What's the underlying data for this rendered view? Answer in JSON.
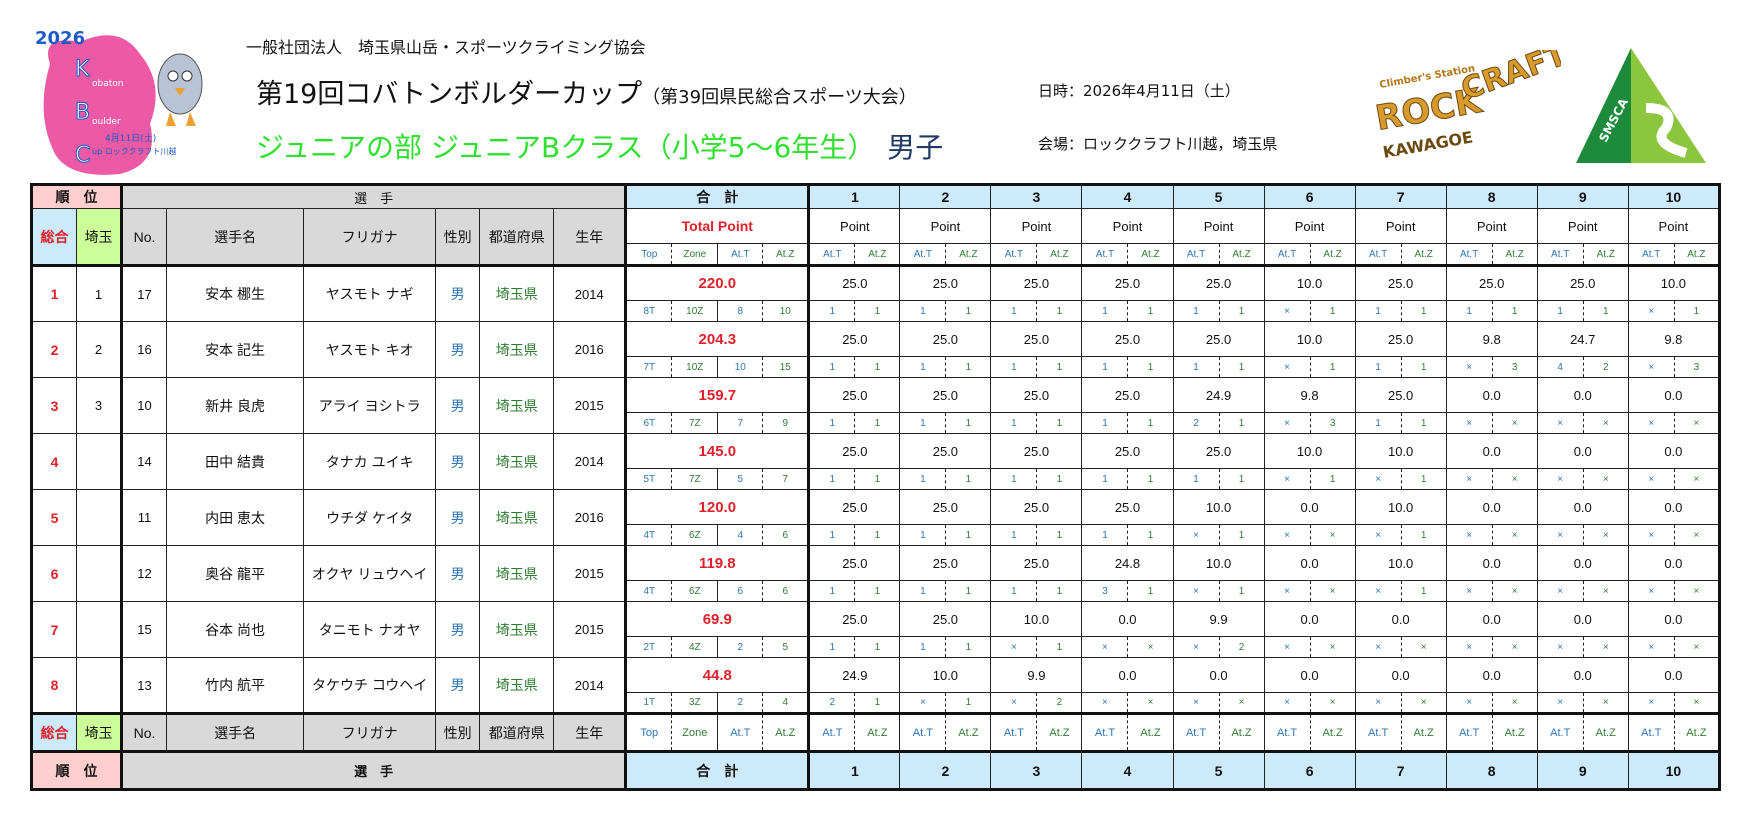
{
  "header": {
    "organization": "一般社団法人　埼玉県山岳・スポーツクライミング協会",
    "title": "第19回コバトンボルダーカップ",
    "subtitle": "（第39回県民総合スポーツ大会）",
    "category": "ジュニアの部 ジュニアBクラス（小学5～6年生）",
    "gender": "男子",
    "date": "日時：2026年4月11日（土）",
    "venue": "会場：ロッククラフト川越，埼玉県"
  },
  "logos": {
    "kbc": {
      "year": "2026",
      "letters": [
        "K",
        "B",
        "C"
      ],
      "words": [
        "obaton",
        "oulder",
        "up ロッククラフト川越"
      ],
      "date": "4月11日(土)"
    },
    "rockcraft": {
      "tagline": "Climber's Station",
      "name1": "ROCK",
      "name2": "CRAFT",
      "place": "KAWAGOE"
    },
    "smsca": {
      "name": "SMSCA"
    }
  },
  "colors": {
    "rank_header": "#ffcfcf",
    "total_header": "#cdeafb",
    "saitama_header": "#ccff99",
    "player_header": "#d9d9d9",
    "total_point": "#e0202a",
    "attempt_top": "#2e75b6",
    "attempt_zone": "#2f7d32"
  },
  "table": {
    "rank_group": "順　位",
    "player_group": "選　手",
    "total_group": "合　計",
    "problems": [
      "1",
      "2",
      "3",
      "4",
      "5",
      "6",
      "7",
      "8",
      "9",
      "10"
    ],
    "cols": {
      "overall": "総合",
      "saitama": "埼玉",
      "no": "No.",
      "name": "選手名",
      "kana": "フリガナ",
      "sex": "性別",
      "pref": "都道府県",
      "year": "生年"
    },
    "total_point": "Total Point",
    "point": "Point",
    "sub": {
      "top": "Top",
      "zone": "Zone",
      "att": "At.T",
      "atz": "At.Z"
    },
    "rows": [
      {
        "overall": "1",
        "saitama": "1",
        "no": "17",
        "name": "安本 梛生",
        "kana": "ヤスモト ナギ",
        "sex": "男",
        "pref": "埼玉県",
        "year": "2014",
        "total": "220.0",
        "top": "8T",
        "zone": "10Z",
        "att": "8",
        "atz": "10",
        "problems": [
          {
            "p": "25.0",
            "t": "1",
            "z": "1"
          },
          {
            "p": "25.0",
            "t": "1",
            "z": "1"
          },
          {
            "p": "25.0",
            "t": "1",
            "z": "1"
          },
          {
            "p": "25.0",
            "t": "1",
            "z": "1"
          },
          {
            "p": "25.0",
            "t": "1",
            "z": "1"
          },
          {
            "p": "10.0",
            "t": "×",
            "z": "1"
          },
          {
            "p": "25.0",
            "t": "1",
            "z": "1"
          },
          {
            "p": "25.0",
            "t": "1",
            "z": "1"
          },
          {
            "p": "25.0",
            "t": "1",
            "z": "1"
          },
          {
            "p": "10.0",
            "t": "×",
            "z": "1"
          }
        ]
      },
      {
        "overall": "2",
        "saitama": "2",
        "no": "16",
        "name": "安本 記生",
        "kana": "ヤスモト キオ",
        "sex": "男",
        "pref": "埼玉県",
        "year": "2016",
        "total": "204.3",
        "top": "7T",
        "zone": "10Z",
        "att": "10",
        "atz": "15",
        "problems": [
          {
            "p": "25.0",
            "t": "1",
            "z": "1"
          },
          {
            "p": "25.0",
            "t": "1",
            "z": "1"
          },
          {
            "p": "25.0",
            "t": "1",
            "z": "1"
          },
          {
            "p": "25.0",
            "t": "1",
            "z": "1"
          },
          {
            "p": "25.0",
            "t": "1",
            "z": "1"
          },
          {
            "p": "10.0",
            "t": "×",
            "z": "1"
          },
          {
            "p": "25.0",
            "t": "1",
            "z": "1"
          },
          {
            "p": "9.8",
            "t": "×",
            "z": "3"
          },
          {
            "p": "24.7",
            "t": "4",
            "z": "2"
          },
          {
            "p": "9.8",
            "t": "×",
            "z": "3"
          }
        ]
      },
      {
        "overall": "3",
        "saitama": "3",
        "no": "10",
        "name": "新井 良虎",
        "kana": "アライ ヨシトラ",
        "sex": "男",
        "pref": "埼玉県",
        "year": "2015",
        "total": "159.7",
        "top": "6T",
        "zone": "7Z",
        "att": "7",
        "atz": "9",
        "problems": [
          {
            "p": "25.0",
            "t": "1",
            "z": "1"
          },
          {
            "p": "25.0",
            "t": "1",
            "z": "1"
          },
          {
            "p": "25.0",
            "t": "1",
            "z": "1"
          },
          {
            "p": "25.0",
            "t": "1",
            "z": "1"
          },
          {
            "p": "24.9",
            "t": "2",
            "z": "1"
          },
          {
            "p": "9.8",
            "t": "×",
            "z": "3"
          },
          {
            "p": "25.0",
            "t": "1",
            "z": "1"
          },
          {
            "p": "0.0",
            "t": "×",
            "z": "×"
          },
          {
            "p": "0.0",
            "t": "×",
            "z": "×"
          },
          {
            "p": "0.0",
            "t": "×",
            "z": "×"
          }
        ]
      },
      {
        "overall": "4",
        "saitama": "",
        "no": "14",
        "name": "田中 結貴",
        "kana": "タナカ ユイキ",
        "sex": "男",
        "pref": "埼玉県",
        "year": "2014",
        "total": "145.0",
        "top": "5T",
        "zone": "7Z",
        "att": "5",
        "atz": "7",
        "problems": [
          {
            "p": "25.0",
            "t": "1",
            "z": "1"
          },
          {
            "p": "25.0",
            "t": "1",
            "z": "1"
          },
          {
            "p": "25.0",
            "t": "1",
            "z": "1"
          },
          {
            "p": "25.0",
            "t": "1",
            "z": "1"
          },
          {
            "p": "25.0",
            "t": "1",
            "z": "1"
          },
          {
            "p": "10.0",
            "t": "×",
            "z": "1"
          },
          {
            "p": "10.0",
            "t": "×",
            "z": "1"
          },
          {
            "p": "0.0",
            "t": "×",
            "z": "×"
          },
          {
            "p": "0.0",
            "t": "×",
            "z": "×"
          },
          {
            "p": "0.0",
            "t": "×",
            "z": "×"
          }
        ]
      },
      {
        "overall": "5",
        "saitama": "",
        "no": "11",
        "name": "内田 恵太",
        "kana": "ウチダ ケイタ",
        "sex": "男",
        "pref": "埼玉県",
        "year": "2016",
        "total": "120.0",
        "top": "4T",
        "zone": "6Z",
        "att": "4",
        "atz": "6",
        "problems": [
          {
            "p": "25.0",
            "t": "1",
            "z": "1"
          },
          {
            "p": "25.0",
            "t": "1",
            "z": "1"
          },
          {
            "p": "25.0",
            "t": "1",
            "z": "1"
          },
          {
            "p": "25.0",
            "t": "1",
            "z": "1"
          },
          {
            "p": "10.0",
            "t": "×",
            "z": "1"
          },
          {
            "p": "0.0",
            "t": "×",
            "z": "×"
          },
          {
            "p": "10.0",
            "t": "×",
            "z": "1"
          },
          {
            "p": "0.0",
            "t": "×",
            "z": "×"
          },
          {
            "p": "0.0",
            "t": "×",
            "z": "×"
          },
          {
            "p": "0.0",
            "t": "×",
            "z": "×"
          }
        ]
      },
      {
        "overall": "6",
        "saitama": "",
        "no": "12",
        "name": "奥谷 龍平",
        "kana": "オクヤ リュウヘイ",
        "sex": "男",
        "pref": "埼玉県",
        "year": "2015",
        "total": "119.8",
        "top": "4T",
        "zone": "6Z",
        "att": "6",
        "atz": "6",
        "problems": [
          {
            "p": "25.0",
            "t": "1",
            "z": "1"
          },
          {
            "p": "25.0",
            "t": "1",
            "z": "1"
          },
          {
            "p": "25.0",
            "t": "1",
            "z": "1"
          },
          {
            "p": "24.8",
            "t": "3",
            "z": "1"
          },
          {
            "p": "10.0",
            "t": "×",
            "z": "1"
          },
          {
            "p": "0.0",
            "t": "×",
            "z": "×"
          },
          {
            "p": "10.0",
            "t": "×",
            "z": "1"
          },
          {
            "p": "0.0",
            "t": "×",
            "z": "×"
          },
          {
            "p": "0.0",
            "t": "×",
            "z": "×"
          },
          {
            "p": "0.0",
            "t": "×",
            "z": "×"
          }
        ]
      },
      {
        "overall": "7",
        "saitama": "",
        "no": "15",
        "name": "谷本 尚也",
        "kana": "タニモト ナオヤ",
        "sex": "男",
        "pref": "埼玉県",
        "year": "2015",
        "total": "69.9",
        "top": "2T",
        "zone": "4Z",
        "att": "2",
        "atz": "5",
        "problems": [
          {
            "p": "25.0",
            "t": "1",
            "z": "1"
          },
          {
            "p": "25.0",
            "t": "1",
            "z": "1"
          },
          {
            "p": "10.0",
            "t": "×",
            "z": "1"
          },
          {
            "p": "0.0",
            "t": "×",
            "z": "×"
          },
          {
            "p": "9.9",
            "t": "×",
            "z": "2"
          },
          {
            "p": "0.0",
            "t": "×",
            "z": "×"
          },
          {
            "p": "0.0",
            "t": "×",
            "z": "×"
          },
          {
            "p": "0.0",
            "t": "×",
            "z": "×"
          },
          {
            "p": "0.0",
            "t": "×",
            "z": "×"
          },
          {
            "p": "0.0",
            "t": "×",
            "z": "×"
          }
        ]
      },
      {
        "overall": "8",
        "saitama": "",
        "no": "13",
        "name": "竹内 航平",
        "kana": "タケウチ コウヘイ",
        "sex": "男",
        "pref": "埼玉県",
        "year": "2014",
        "total": "44.8",
        "top": "1T",
        "zone": "3Z",
        "att": "2",
        "atz": "4",
        "problems": [
          {
            "p": "24.9",
            "t": "2",
            "z": "1"
          },
          {
            "p": "10.0",
            "t": "×",
            "z": "1"
          },
          {
            "p": "9.9",
            "t": "×",
            "z": "2"
          },
          {
            "p": "0.0",
            "t": "×",
            "z": "×"
          },
          {
            "p": "0.0",
            "t": "×",
            "z": "×"
          },
          {
            "p": "0.0",
            "t": "×",
            "z": "×"
          },
          {
            "p": "0.0",
            "t": "×",
            "z": "×"
          },
          {
            "p": "0.0",
            "t": "×",
            "z": "×"
          },
          {
            "p": "0.0",
            "t": "×",
            "z": "×"
          },
          {
            "p": "0.0",
            "t": "×",
            "z": "×"
          }
        ]
      }
    ]
  }
}
